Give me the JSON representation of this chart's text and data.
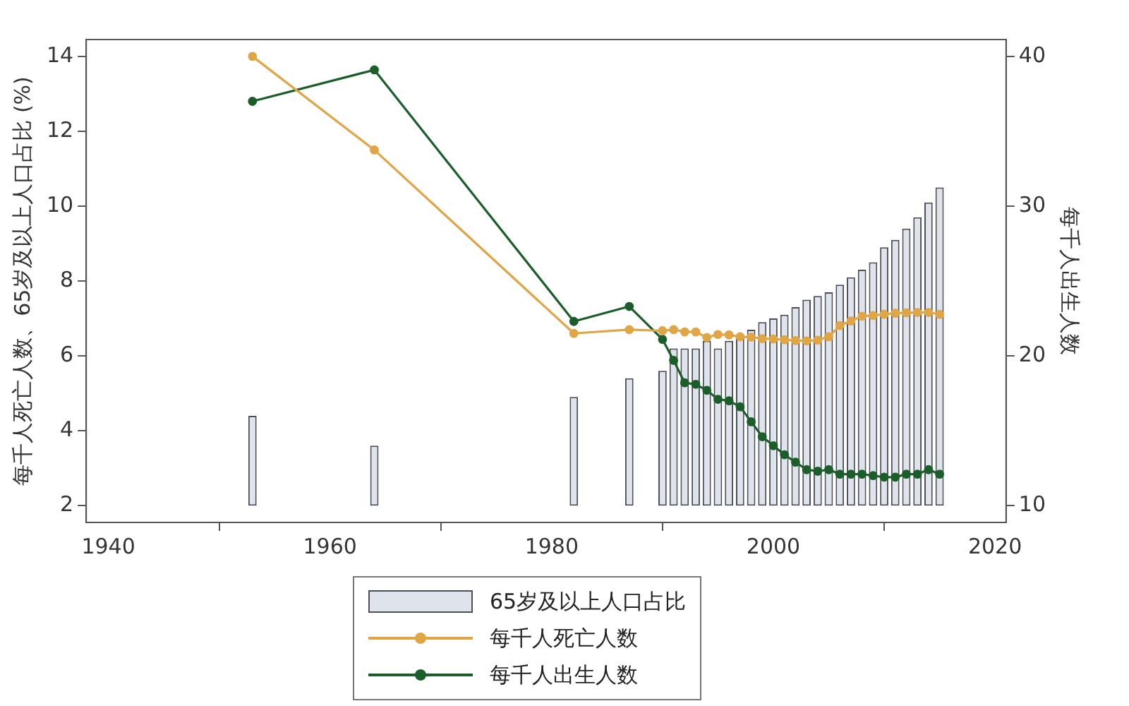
{
  "chart_data": {
    "type": "line",
    "ylabel": "每千人死亡人数、65岁及以上人口占比 (%)",
    "y2label": "每千人出生人数",
    "xlim": [
      1938,
      2021
    ],
    "xticks": [
      1940,
      1960,
      1980,
      2000,
      2020
    ],
    "ylim": [
      1.55,
      14.45
    ],
    "yticks": [
      2,
      4,
      6,
      8,
      10,
      12,
      14
    ],
    "y2lim": [
      8.875,
      41.125
    ],
    "y2ticks": [
      10,
      20,
      30,
      40
    ],
    "grid": false,
    "legend": "bottom",
    "marker": "circle",
    "line_style": "solid",
    "series": [
      {
        "name": "65岁及以上人口占比",
        "type": "bar",
        "axis": "y",
        "color": "#dfe4ec",
        "x": [
          1953,
          1964,
          1982,
          1987,
          1990,
          1991,
          1992,
          1993,
          1994,
          1995,
          1996,
          1997,
          1998,
          1999,
          2000,
          2001,
          2002,
          2003,
          2004,
          2005,
          2006,
          2007,
          2008,
          2009,
          2010,
          2011,
          2012,
          2013,
          2014,
          2015
        ],
        "base": [
          2,
          2,
          2,
          2,
          2,
          2,
          2,
          2,
          2,
          2,
          2,
          2,
          2,
          2,
          2,
          2,
          2,
          2,
          2,
          2,
          2,
          2,
          2,
          2,
          2,
          2,
          2,
          2,
          2,
          2
        ],
        "values": [
          2.4,
          1.6,
          2.9,
          3.4,
          3.6,
          4.2,
          4.2,
          4.2,
          4.4,
          4.2,
          4.4,
          4.5,
          4.7,
          4.9,
          5.0,
          5.1,
          5.3,
          5.5,
          5.6,
          5.7,
          5.9,
          6.1,
          6.3,
          6.5,
          6.9,
          7.1,
          7.4,
          7.7,
          8.1,
          8.5
        ]
      },
      {
        "name": "每千人死亡人数",
        "axis": "y",
        "color": "#e0a545",
        "x": [
          1953,
          1964,
          1982,
          1987,
          1990,
          1991,
          1992,
          1993,
          1994,
          1995,
          1996,
          1997,
          1998,
          1999,
          2000,
          2001,
          2002,
          2003,
          2004,
          2005,
          2006,
          2007,
          2008,
          2009,
          2010,
          2011,
          2012,
          2013,
          2014,
          2015
        ],
        "values": [
          14.0,
          11.5,
          6.6,
          6.7,
          6.67,
          6.7,
          6.64,
          6.64,
          6.49,
          6.57,
          6.56,
          6.51,
          6.5,
          6.46,
          6.45,
          6.43,
          6.41,
          6.4,
          6.42,
          6.51,
          6.81,
          6.93,
          7.06,
          7.08,
          7.11,
          7.14,
          7.15,
          7.16,
          7.16,
          7.11
        ]
      },
      {
        "name": "每千人出生人数",
        "axis": "y2",
        "color": "#1b5e2a",
        "x": [
          1953,
          1964,
          1982,
          1987,
          1990,
          1991,
          1992,
          1993,
          1994,
          1995,
          1996,
          1997,
          1998,
          1999,
          2000,
          2001,
          2002,
          2003,
          2004,
          2005,
          2006,
          2007,
          2008,
          2009,
          2010,
          2011,
          2012,
          2013,
          2014,
          2015
        ],
        "values": [
          37.0,
          39.1,
          22.3,
          23.3,
          21.1,
          19.7,
          18.2,
          18.1,
          17.7,
          17.1,
          17.0,
          16.6,
          15.6,
          14.6,
          14.0,
          13.4,
          12.9,
          12.4,
          12.3,
          12.4,
          12.1,
          12.1,
          12.1,
          12.0,
          11.9,
          11.9,
          12.1,
          12.1,
          12.4,
          12.1
        ]
      }
    ]
  }
}
